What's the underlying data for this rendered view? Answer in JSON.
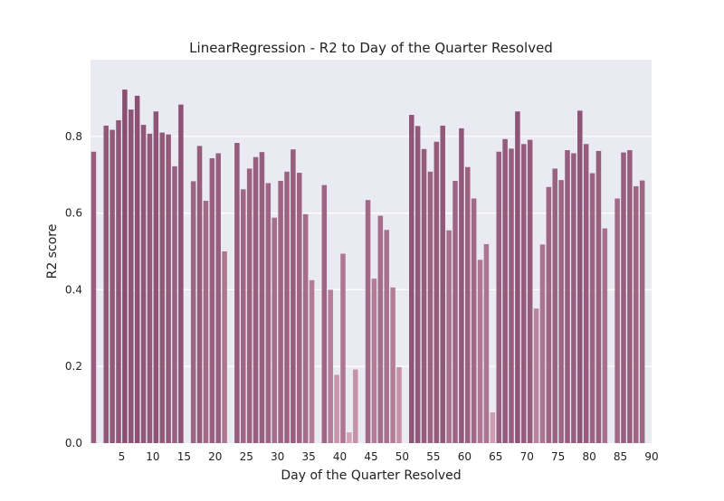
{
  "chart_data": {
    "type": "bar",
    "title": "LinearRegression - R2 to Day of the Quarter Resolved",
    "xlabel": "Day of the Quarter Resolved",
    "ylabel": "R2 score",
    "xlim": [
      0,
      90
    ],
    "ylim": [
      0,
      1.0
    ],
    "grid": true,
    "x_ticks": [
      5,
      10,
      15,
      20,
      25,
      30,
      35,
      40,
      45,
      50,
      55,
      60,
      65,
      70,
      75,
      80,
      85,
      90
    ],
    "y_ticks": [
      0.0,
      0.2,
      0.4,
      0.6,
      0.8
    ],
    "x_tick_labels": [
      "5",
      "10",
      "15",
      "20",
      "25",
      "30",
      "35",
      "40",
      "45",
      "50",
      "55",
      "60",
      "65",
      "70",
      "75",
      "80",
      "85",
      "90"
    ],
    "y_tick_labels": [
      "0.0",
      "0.2",
      "0.4",
      "0.6",
      "0.8"
    ],
    "x": [
      0,
      1,
      2,
      3,
      4,
      5,
      6,
      7,
      8,
      9,
      10,
      11,
      12,
      13,
      14,
      15,
      16,
      17,
      18,
      19,
      20,
      21,
      22,
      23,
      24,
      25,
      26,
      27,
      28,
      29,
      30,
      31,
      32,
      33,
      34,
      35,
      36,
      37,
      38,
      39,
      40,
      41,
      42,
      43,
      44,
      45,
      46,
      47,
      48,
      49,
      50,
      51,
      52,
      53,
      54,
      55,
      56,
      57,
      58,
      59,
      60,
      61,
      62,
      63,
      64,
      65,
      66,
      67,
      68,
      69,
      70,
      71,
      72,
      73,
      74,
      75,
      76,
      77,
      78,
      79,
      80,
      81,
      82,
      83,
      84,
      85,
      86,
      87,
      88,
      89
    ],
    "values": [
      0.76,
      0.0,
      0.828,
      0.817,
      0.842,
      0.922,
      0.87,
      0.906,
      0.83,
      0.807,
      0.865,
      0.81,
      0.805,
      0.722,
      0.883,
      0.0,
      0.683,
      0.775,
      0.632,
      0.743,
      0.756,
      0.5,
      0.0,
      0.783,
      0.662,
      0.716,
      0.746,
      0.759,
      0.678,
      0.588,
      0.684,
      0.708,
      0.766,
      0.705,
      0.597,
      0.425,
      0.0,
      0.673,
      0.4,
      0.178,
      0.494,
      0.028,
      0.192,
      0.0,
      0.634,
      0.429,
      0.593,
      0.556,
      0.406,
      0.198,
      0.0,
      0.856,
      0.827,
      0.767,
      0.708,
      0.786,
      0.828,
      0.555,
      0.684,
      0.821,
      0.72,
      0.638,
      0.478,
      0.519,
      0.08,
      0.76,
      0.793,
      0.768,
      0.865,
      0.78,
      0.791,
      0.351,
      0.518,
      0.668,
      0.716,
      0.686,
      0.764,
      0.756,
      0.867,
      0.78,
      0.704,
      0.762,
      0.56,
      0.0,
      0.638,
      0.758,
      0.764,
      0.67,
      0.685,
      0.0
    ],
    "colors": {
      "background": "#EAEAF2",
      "grid": "#FFFFFF",
      "bar_low": "#D6A4B8",
      "bar_high": "#8A4F71"
    }
  }
}
